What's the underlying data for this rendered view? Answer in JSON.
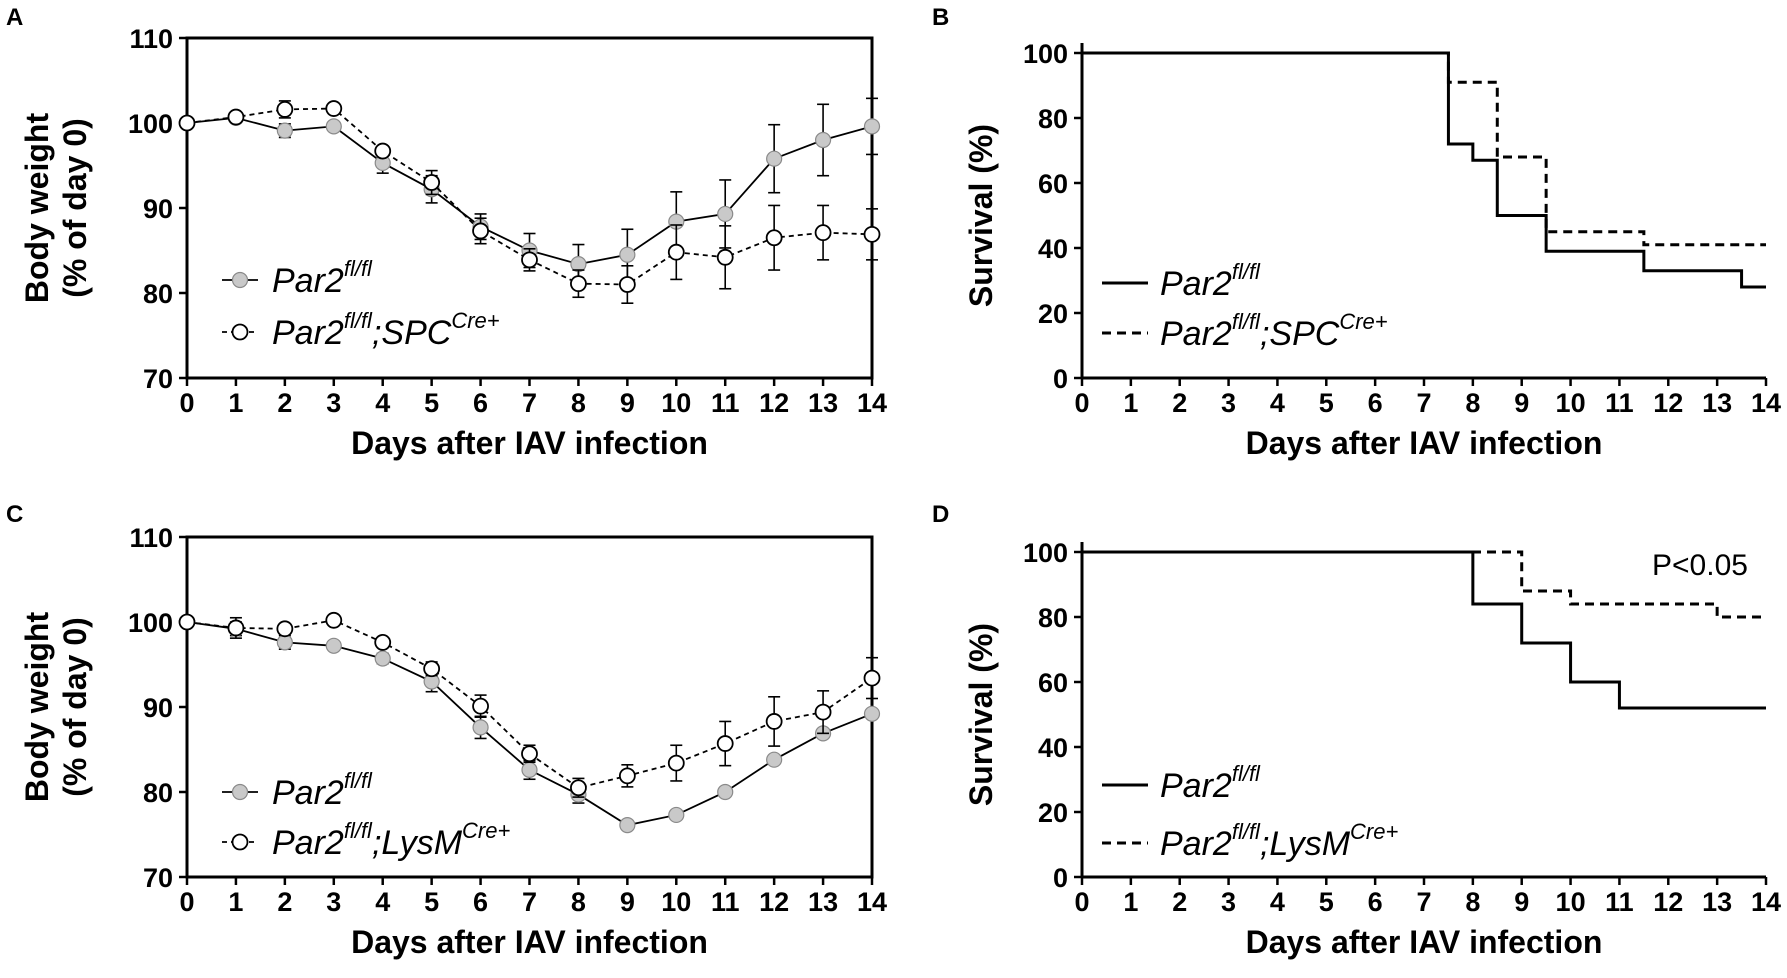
{
  "chart_data": [
    {
      "panel": "A",
      "type": "line",
      "xlabel": "Days after IAV infection",
      "ylabel_line1": "Body weight",
      "ylabel_line2": "(% of day 0)",
      "xlim": [
        0,
        14
      ],
      "ylim": [
        70,
        110
      ],
      "xticks": [
        0,
        1,
        2,
        3,
        4,
        5,
        6,
        7,
        8,
        9,
        10,
        11,
        12,
        13,
        14
      ],
      "yticks": [
        70,
        80,
        90,
        100,
        110
      ],
      "series": [
        {
          "name": "Par2",
          "sup": "fl/fl",
          "marker": "filled-circle",
          "line": "solid",
          "x": [
            0,
            1,
            2,
            3,
            4,
            5,
            6,
            7,
            8,
            9,
            10,
            11,
            12,
            13,
            14
          ],
          "values": [
            100,
            100.6,
            99.1,
            99.6,
            95.3,
            92.2,
            87.8,
            85.0,
            83.4,
            84.5,
            88.4,
            89.3,
            95.8,
            98.0,
            99.6
          ],
          "errors": [
            0,
            0.3,
            0.8,
            0.5,
            1.2,
            1.6,
            1.5,
            2.0,
            2.3,
            3.0,
            3.5,
            4.0,
            4.0,
            4.2,
            3.3
          ]
        },
        {
          "name": "Par2",
          "sup": "fl/fl",
          "suffix": ";SPC",
          "suffix_sup": "Cre+",
          "marker": "open-circle",
          "line": "dashed",
          "x": [
            0,
            1,
            2,
            3,
            4,
            5,
            6,
            7,
            8,
            9,
            10,
            11,
            12,
            13,
            14
          ],
          "values": [
            100,
            100.7,
            101.6,
            101.7,
            96.7,
            93.0,
            87.3,
            83.9,
            81.1,
            81.0,
            84.8,
            84.2,
            86.5,
            87.1,
            86.9
          ],
          "errors": [
            0,
            0.3,
            1.0,
            0.5,
            0.6,
            1.4,
            1.5,
            1.3,
            1.6,
            2.2,
            3.2,
            3.7,
            3.8,
            3.2,
            3.0
          ]
        }
      ]
    },
    {
      "panel": "B",
      "type": "line",
      "style": "step",
      "xlabel": "Days after IAV infection",
      "ylabel": "Survival (%)",
      "xlim": [
        0,
        14
      ],
      "ylim": [
        0,
        100
      ],
      "xticks": [
        0,
        1,
        2,
        3,
        4,
        5,
        6,
        7,
        8,
        9,
        10,
        11,
        12,
        13,
        14
      ],
      "yticks": [
        0,
        20,
        40,
        60,
        80,
        100
      ],
      "series": [
        {
          "name": "Par2",
          "sup": "fl/fl",
          "line": "solid",
          "x": [
            0,
            7.5,
            8,
            8.5,
            9.5,
            11.5,
            13.5,
            14
          ],
          "values": [
            100,
            72,
            67,
            50,
            39,
            33,
            28,
            28
          ]
        },
        {
          "name": "Par2",
          "sup": "fl/fl",
          "suffix": ";SPC",
          "suffix_sup": "Cre+",
          "line": "dashed",
          "x": [
            0,
            7.5,
            8.5,
            9.5,
            11.5,
            14
          ],
          "values": [
            100,
            91,
            68,
            45,
            41,
            41
          ]
        }
      ]
    },
    {
      "panel": "C",
      "type": "line",
      "xlabel": "Days after IAV infection",
      "ylabel_line1": "Body weight",
      "ylabel_line2": "(% of day 0)",
      "xlim": [
        0,
        14
      ],
      "ylim": [
        70,
        110
      ],
      "xticks": [
        0,
        1,
        2,
        3,
        4,
        5,
        6,
        7,
        8,
        9,
        10,
        11,
        12,
        13,
        14
      ],
      "yticks": [
        70,
        80,
        90,
        100,
        110
      ],
      "series": [
        {
          "name": "Par2",
          "sup": "fl/fl",
          "marker": "filled-circle",
          "line": "solid",
          "x": [
            0,
            1,
            2,
            3,
            4,
            5,
            6,
            7,
            8,
            9,
            10,
            11,
            12,
            13,
            14
          ],
          "values": [
            100,
            99.2,
            97.6,
            97.2,
            95.7,
            93.0,
            87.6,
            82.6,
            79.7,
            76.1,
            77.3,
            80.0,
            83.8,
            86.9,
            89.2
          ],
          "errors": [
            0,
            0.8,
            0.8,
            0.5,
            0.6,
            1.2,
            1.3,
            1.1,
            1.0,
            0.3,
            0.4,
            0.5,
            0.5,
            0.5,
            0.5
          ]
        },
        {
          "name": "Par2",
          "sup": "fl/fl",
          "suffix": ";LysM",
          "suffix_sup": "Cre+",
          "marker": "open-circle",
          "line": "dashed",
          "x": [
            0,
            1,
            2,
            3,
            4,
            5,
            6,
            7,
            8,
            9,
            10,
            11,
            12,
            13,
            14
          ],
          "values": [
            100,
            99.3,
            99.2,
            100.2,
            97.6,
            94.5,
            90.1,
            84.5,
            80.5,
            81.9,
            83.4,
            85.7,
            88.3,
            89.4,
            93.4
          ],
          "errors": [
            0,
            1.2,
            0.5,
            0.4,
            0.5,
            0.8,
            1.3,
            1.0,
            1.1,
            1.3,
            2.1,
            2.6,
            2.9,
            2.5,
            2.4
          ]
        }
      ]
    },
    {
      "panel": "D",
      "type": "line",
      "style": "step",
      "xlabel": "Days after IAV infection",
      "ylabel": "Survival (%)",
      "annotation": "P<0.05",
      "xlim": [
        0,
        14
      ],
      "ylim": [
        0,
        100
      ],
      "xticks": [
        0,
        1,
        2,
        3,
        4,
        5,
        6,
        7,
        8,
        9,
        10,
        11,
        12,
        13,
        14
      ],
      "yticks": [
        0,
        20,
        40,
        60,
        80,
        100
      ],
      "series": [
        {
          "name": "Par2",
          "sup": "fl/fl",
          "line": "solid",
          "x": [
            0,
            8,
            9,
            10,
            11,
            14
          ],
          "values": [
            100,
            84,
            72,
            60,
            52,
            52
          ]
        },
        {
          "name": "Par2",
          "sup": "fl/fl",
          "suffix": ";LysM",
          "suffix_sup": "Cre+",
          "line": "dashed",
          "x": [
            0,
            9,
            10,
            13,
            14
          ],
          "values": [
            100,
            88,
            84,
            80,
            80
          ]
        }
      ]
    }
  ]
}
